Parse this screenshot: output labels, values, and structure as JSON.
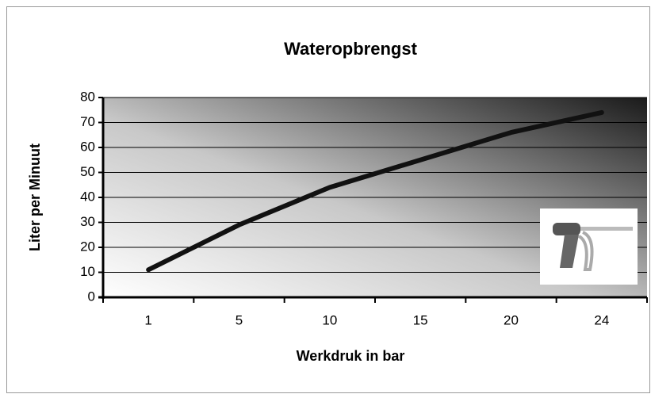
{
  "chart_data": {
    "type": "line",
    "title": "Wateropbrengst",
    "x_label": "Werkdruk in bar",
    "y_label": "Liter per Minuut",
    "categories": [
      "1",
      "5",
      "10",
      "15",
      "20",
      "24"
    ],
    "values": [
      11,
      29,
      44,
      55,
      66,
      74
    ],
    "color": "#111111",
    "ylim": [
      0,
      80
    ],
    "yticks": [
      0,
      10,
      20,
      30,
      40,
      50,
      60,
      70,
      80
    ],
    "grid": true
  }
}
